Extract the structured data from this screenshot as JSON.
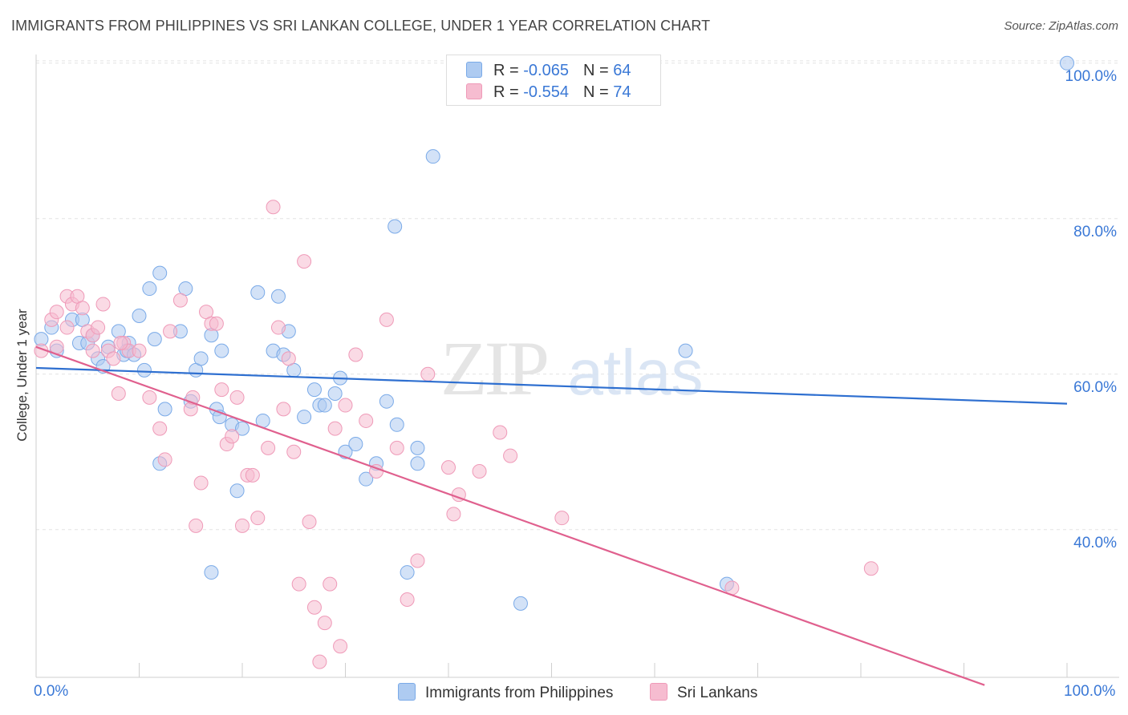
{
  "header": {
    "title": "IMMIGRANTS FROM PHILIPPINES VS SRI LANKAN COLLEGE, UNDER 1 YEAR CORRELATION CHART",
    "source": "Source: ZipAtlas.com"
  },
  "watermark": {
    "zip": "ZIP",
    "atlas": "atlas"
  },
  "stats_legend": {
    "rows": [
      {
        "r_label": "R = ",
        "r_value": "-0.065",
        "n_label": "N = ",
        "n_value": "64",
        "color": "#aecbf1"
      },
      {
        "r_label": "R = ",
        "r_value": "-0.554",
        "n_label": "N = ",
        "n_value": "74",
        "color": "#f6bcd0"
      }
    ]
  },
  "chart_data": {
    "type": "scatter",
    "title": "IMMIGRANTS FROM PHILIPPINES VS SRI LANKAN COLLEGE, UNDER 1 YEAR CORRELATION CHART",
    "xlabel": "",
    "ylabel": "College, Under 1 year",
    "xlim": [
      0,
      100
    ],
    "ylim": [
      21,
      104
    ],
    "x_tick_labels": [
      "0.0%",
      "100.0%"
    ],
    "y_tick_labels": [
      "40.0%",
      "60.0%",
      "80.0%",
      "100.0%"
    ],
    "y_ticks": [
      40,
      60,
      80,
      100
    ],
    "grid": true,
    "legend_position": "bottom-center",
    "series": [
      {
        "name": "Immigrants from Philippines",
        "color": "#7aaae8",
        "fill": "#aecbf1",
        "line_color": "#2e6fd0",
        "trend": {
          "x0": 0,
          "y0": 60.8,
          "x1": 100,
          "y1": 56.2
        },
        "points": [
          [
            0.5,
            64.5
          ],
          [
            1.5,
            66
          ],
          [
            2,
            63
          ],
          [
            3.5,
            67
          ],
          [
            4.2,
            64
          ],
          [
            5,
            64
          ],
          [
            4.5,
            67
          ],
          [
            5.5,
            65
          ],
          [
            7,
            63.5
          ],
          [
            6,
            62
          ],
          [
            6.5,
            61
          ],
          [
            8,
            65.5
          ],
          [
            8.5,
            62.5
          ],
          [
            9,
            64
          ],
          [
            8.8,
            63
          ],
          [
            9.5,
            62.5
          ],
          [
            10,
            67.5
          ],
          [
            11,
            71
          ],
          [
            10.5,
            60.5
          ],
          [
            11.5,
            64.5
          ],
          [
            12,
            73
          ],
          [
            12.5,
            55.5
          ],
          [
            14,
            65.5
          ],
          [
            14.5,
            71
          ],
          [
            15,
            56.5
          ],
          [
            15.5,
            60.5
          ],
          [
            16,
            62
          ],
          [
            17,
            65
          ],
          [
            18,
            63
          ],
          [
            17.5,
            55.5
          ],
          [
            17.8,
            54.5
          ],
          [
            19,
            53.5
          ],
          [
            19.5,
            45
          ],
          [
            20,
            53
          ],
          [
            21.5,
            70.5
          ],
          [
            22,
            54
          ],
          [
            23,
            63
          ],
          [
            23.5,
            70
          ],
          [
            24,
            62.5
          ],
          [
            24.5,
            65.5
          ],
          [
            25,
            60.5
          ],
          [
            26,
            54.5
          ],
          [
            27,
            58
          ],
          [
            27.5,
            56
          ],
          [
            28,
            56
          ],
          [
            29,
            57.5
          ],
          [
            29.5,
            59.5
          ],
          [
            30,
            50
          ],
          [
            31,
            51
          ],
          [
            32,
            46.5
          ],
          [
            33,
            48.5
          ],
          [
            34,
            56.5
          ],
          [
            35,
            53.5
          ],
          [
            36,
            34.5
          ],
          [
            37,
            50.5
          ],
          [
            37,
            48.5
          ],
          [
            38.5,
            88
          ],
          [
            34.8,
            79
          ],
          [
            47,
            30.5
          ],
          [
            63,
            63
          ],
          [
            67,
            33
          ],
          [
            100,
            100
          ],
          [
            17,
            34.5
          ],
          [
            12,
            48.5
          ]
        ]
      },
      {
        "name": "Sri Lankans",
        "color": "#ef9ab8",
        "fill": "#f6bcd0",
        "line_color": "#e0608e",
        "trend": {
          "x0": 0,
          "y0": 63.5,
          "x1": 92,
          "y1": 20
        },
        "points": [
          [
            0.5,
            63
          ],
          [
            1.5,
            67
          ],
          [
            2,
            68
          ],
          [
            3,
            70
          ],
          [
            3.5,
            69
          ],
          [
            4,
            70
          ],
          [
            4.5,
            68.5
          ],
          [
            5,
            65.5
          ],
          [
            5.5,
            65
          ],
          [
            6,
            66
          ],
          [
            6.5,
            69
          ],
          [
            7,
            63
          ],
          [
            7.5,
            62
          ],
          [
            8,
            57.5
          ],
          [
            8.5,
            64
          ],
          [
            9,
            63
          ],
          [
            10,
            63
          ],
          [
            11,
            57
          ],
          [
            12,
            53
          ],
          [
            12.5,
            49
          ],
          [
            13,
            65.5
          ],
          [
            14,
            69.5
          ],
          [
            15,
            55.5
          ],
          [
            15.5,
            40.5
          ],
          [
            16,
            46
          ],
          [
            16.5,
            68
          ],
          [
            17,
            66.5
          ],
          [
            17.5,
            66.5
          ],
          [
            18,
            58
          ],
          [
            18.5,
            51
          ],
          [
            19,
            52
          ],
          [
            19.5,
            57
          ],
          [
            20,
            40.5
          ],
          [
            20.5,
            47
          ],
          [
            21,
            47
          ],
          [
            21.5,
            41.5
          ],
          [
            22.5,
            50.5
          ],
          [
            23,
            81.5
          ],
          [
            23.5,
            66
          ],
          [
            24,
            55.5
          ],
          [
            24.5,
            62
          ],
          [
            25,
            50
          ],
          [
            25.5,
            33
          ],
          [
            26,
            74.5
          ],
          [
            26.5,
            41
          ],
          [
            27,
            30
          ],
          [
            27.5,
            23
          ],
          [
            28,
            28
          ],
          [
            28.5,
            33
          ],
          [
            29,
            53
          ],
          [
            29.5,
            25
          ],
          [
            30,
            56
          ],
          [
            31,
            62.5
          ],
          [
            32,
            54
          ],
          [
            33,
            47.5
          ],
          [
            34,
            67
          ],
          [
            35,
            50.5
          ],
          [
            36,
            31
          ],
          [
            37,
            36
          ],
          [
            38,
            60
          ],
          [
            40,
            48
          ],
          [
            40.5,
            42
          ],
          [
            41,
            44.5
          ],
          [
            43,
            47.5
          ],
          [
            45,
            52.5
          ],
          [
            46,
            49.5
          ],
          [
            51,
            41.5
          ],
          [
            67.5,
            32.5
          ],
          [
            81,
            35
          ],
          [
            2,
            63.5
          ],
          [
            3,
            66
          ],
          [
            5.5,
            63
          ],
          [
            8.2,
            64
          ],
          [
            15.2,
            57
          ]
        ]
      }
    ]
  },
  "bottom_legend": [
    {
      "label": "Immigrants from Philippines",
      "color": "#aecbf1"
    },
    {
      "label": "Sri Lankans",
      "color": "#f6bcd0"
    }
  ]
}
